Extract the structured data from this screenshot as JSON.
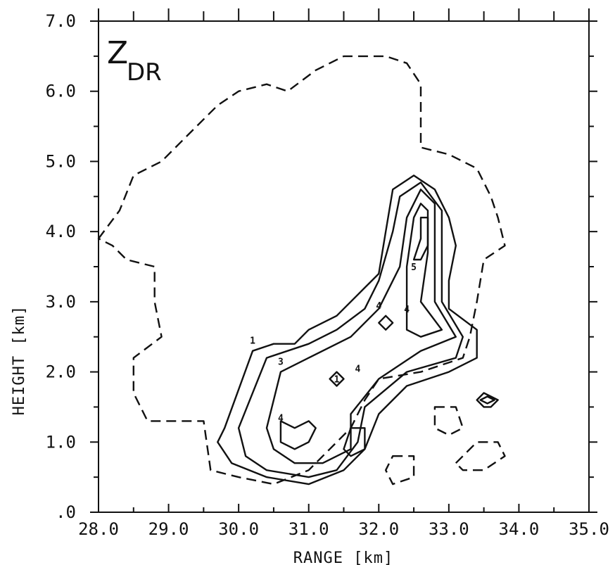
{
  "chart_data": {
    "type": "contour",
    "panel_label": {
      "main": "Z",
      "sub": "DR"
    },
    "xlabel": "RANGE [km]",
    "ylabel": "HEIGHT [km]",
    "xlim": [
      28.0,
      35.0
    ],
    "ylim": [
      0.0,
      7.0
    ],
    "x_tick_labels": [
      "28.0",
      "29.0",
      "30.0",
      "31.0",
      "32.0",
      "33.0",
      "34.0",
      "35.0"
    ],
    "y_tick_labels": [
      ".0",
      "1.0",
      "2.0",
      "3.0",
      "4.0",
      "5.0",
      "6.0",
      "7.0"
    ],
    "x_ticks": [
      28.0,
      29.0,
      30.0,
      31.0,
      32.0,
      33.0,
      34.0,
      35.0
    ],
    "y_ticks": [
      0.0,
      1.0,
      2.0,
      3.0,
      4.0,
      5.0,
      6.0,
      7.0
    ],
    "contours": [
      {
        "level": "0",
        "style": "dashed",
        "closed": true,
        "points": [
          [
            28.0,
            3.9
          ],
          [
            28.3,
            4.3
          ],
          [
            28.5,
            4.8
          ],
          [
            28.9,
            5.0
          ],
          [
            29.3,
            5.4
          ],
          [
            29.7,
            5.8
          ],
          [
            30.0,
            6.0
          ],
          [
            30.4,
            6.1
          ],
          [
            30.7,
            6.0
          ],
          [
            31.1,
            6.3
          ],
          [
            31.5,
            6.5
          ],
          [
            31.7,
            6.5
          ],
          [
            32.1,
            6.5
          ],
          [
            32.4,
            6.4
          ],
          [
            32.6,
            6.1
          ],
          [
            32.6,
            5.6
          ],
          [
            32.6,
            5.2
          ],
          [
            33.0,
            5.1
          ],
          [
            33.4,
            4.9
          ],
          [
            33.6,
            4.5
          ],
          [
            33.7,
            4.2
          ],
          [
            33.8,
            3.8
          ],
          [
            33.5,
            3.6
          ],
          [
            33.4,
            3.0
          ],
          [
            33.3,
            2.5
          ],
          [
            33.2,
            2.2
          ],
          [
            32.6,
            2.0
          ],
          [
            32.0,
            1.9
          ],
          [
            31.8,
            1.6
          ],
          [
            31.6,
            1.2
          ],
          [
            31.3,
            0.9
          ],
          [
            31.0,
            0.6
          ],
          [
            30.5,
            0.4
          ],
          [
            30.0,
            0.5
          ],
          [
            29.6,
            0.6
          ],
          [
            29.5,
            1.3
          ],
          [
            28.9,
            1.3
          ],
          [
            28.7,
            1.3
          ],
          [
            28.5,
            1.7
          ],
          [
            28.5,
            2.2
          ],
          [
            28.9,
            2.5
          ],
          [
            28.8,
            3.0
          ],
          [
            28.8,
            3.5
          ],
          [
            28.4,
            3.6
          ],
          [
            28.2,
            3.8
          ]
        ]
      },
      {
        "level": "0",
        "style": "dashed",
        "closed": true,
        "points": [
          [
            32.2,
            0.8
          ],
          [
            32.5,
            0.8
          ],
          [
            32.5,
            0.5
          ],
          [
            32.2,
            0.4
          ],
          [
            32.1,
            0.6
          ]
        ]
      },
      {
        "level": "0",
        "style": "dashed",
        "closed": true,
        "points": [
          [
            32.8,
            1.5
          ],
          [
            33.1,
            1.5
          ],
          [
            33.2,
            1.2
          ],
          [
            33.0,
            1.1
          ],
          [
            32.8,
            1.2
          ]
        ]
      },
      {
        "level": "0",
        "style": "dashed",
        "closed": true,
        "points": [
          [
            33.1,
            0.7
          ],
          [
            33.4,
            1.0
          ],
          [
            33.7,
            1.0
          ],
          [
            33.8,
            0.8
          ],
          [
            33.5,
            0.6
          ],
          [
            33.2,
            0.6
          ]
        ]
      },
      {
        "level": "1",
        "style": "solid",
        "closed": true,
        "points": [
          [
            29.8,
            1.2
          ],
          [
            30.2,
            2.3
          ],
          [
            30.5,
            2.4
          ],
          [
            30.8,
            2.4
          ],
          [
            31.0,
            2.6
          ],
          [
            31.4,
            2.8
          ],
          [
            31.8,
            3.2
          ],
          [
            32.0,
            3.4
          ],
          [
            32.1,
            4.0
          ],
          [
            32.2,
            4.6
          ],
          [
            32.5,
            4.8
          ],
          [
            32.8,
            4.6
          ],
          [
            33.0,
            4.2
          ],
          [
            33.1,
            3.8
          ],
          [
            33.0,
            3.3
          ],
          [
            33.0,
            2.9
          ],
          [
            33.4,
            2.6
          ],
          [
            33.4,
            2.2
          ],
          [
            33.0,
            2.0
          ],
          [
            32.4,
            1.8
          ],
          [
            32.0,
            1.4
          ],
          [
            31.8,
            0.9
          ],
          [
            31.5,
            0.6
          ],
          [
            31.0,
            0.4
          ],
          [
            30.4,
            0.5
          ],
          [
            29.9,
            0.7
          ],
          [
            29.7,
            1.0
          ]
        ]
      },
      {
        "level": "2",
        "style": "solid",
        "closed": true,
        "points": [
          [
            30.0,
            1.2
          ],
          [
            30.4,
            2.2
          ],
          [
            31.0,
            2.4
          ],
          [
            31.4,
            2.6
          ],
          [
            31.8,
            2.9
          ],
          [
            32.0,
            3.3
          ],
          [
            32.2,
            4.0
          ],
          [
            32.3,
            4.5
          ],
          [
            32.6,
            4.7
          ],
          [
            32.9,
            4.3
          ],
          [
            32.9,
            3.5
          ],
          [
            32.9,
            3.0
          ],
          [
            33.2,
            2.5
          ],
          [
            33.1,
            2.2
          ],
          [
            32.4,
            2.0
          ],
          [
            31.8,
            1.5
          ],
          [
            31.7,
            1.0
          ],
          [
            31.4,
            0.6
          ],
          [
            31.0,
            0.5
          ],
          [
            30.4,
            0.6
          ],
          [
            30.1,
            0.8
          ]
        ]
      },
      {
        "level": "3",
        "style": "solid",
        "closed": true,
        "points": [
          [
            30.4,
            1.2
          ],
          [
            30.6,
            2.0
          ],
          [
            31.0,
            2.2
          ],
          [
            31.6,
            2.5
          ],
          [
            32.0,
            2.9
          ],
          [
            32.3,
            3.5
          ],
          [
            32.4,
            4.2
          ],
          [
            32.6,
            4.6
          ],
          [
            32.8,
            4.4
          ],
          [
            32.8,
            3.6
          ],
          [
            32.8,
            3.0
          ],
          [
            33.1,
            2.5
          ],
          [
            32.6,
            2.3
          ],
          [
            32.0,
            1.9
          ],
          [
            31.6,
            1.4
          ],
          [
            31.6,
            0.9
          ],
          [
            31.2,
            0.7
          ],
          [
            30.8,
            0.7
          ],
          [
            30.5,
            0.9
          ]
        ]
      },
      {
        "level": "4",
        "style": "solid",
        "closed": true,
        "points": [
          [
            32.4,
            2.6
          ],
          [
            32.4,
            3.5
          ],
          [
            32.5,
            4.2
          ],
          [
            32.6,
            4.4
          ],
          [
            32.7,
            4.3
          ],
          [
            32.7,
            3.7
          ],
          [
            32.6,
            3.0
          ],
          [
            32.9,
            2.6
          ],
          [
            32.6,
            2.5
          ]
        ]
      },
      {
        "level": "5",
        "style": "solid",
        "closed": true,
        "points": [
          [
            32.5,
            3.6
          ],
          [
            32.6,
            3.9
          ],
          [
            32.6,
            4.2
          ],
          [
            32.7,
            4.2
          ],
          [
            32.7,
            3.8
          ],
          [
            32.6,
            3.6
          ]
        ]
      },
      {
        "level": "4",
        "style": "solid",
        "closed": true,
        "points": [
          [
            30.6,
            1.0
          ],
          [
            30.6,
            1.3
          ],
          [
            30.8,
            1.2
          ],
          [
            31.0,
            1.3
          ],
          [
            31.1,
            1.2
          ],
          [
            31.0,
            1.0
          ],
          [
            30.8,
            0.9
          ]
        ]
      },
      {
        "level": "4",
        "style": "solid",
        "closed": true,
        "points": [
          [
            31.5,
            0.9
          ],
          [
            31.6,
            1.2
          ],
          [
            31.8,
            1.2
          ],
          [
            31.8,
            0.9
          ],
          [
            31.6,
            0.8
          ]
        ]
      },
      {
        "level": "4",
        "style": "solid",
        "closed": true,
        "points": [
          [
            31.3,
            1.9
          ],
          [
            31.4,
            2.0
          ],
          [
            31.5,
            1.9
          ],
          [
            31.4,
            1.8
          ]
        ]
      },
      {
        "level": "4",
        "style": "solid",
        "closed": true,
        "points": [
          [
            32.0,
            2.7
          ],
          [
            32.1,
            2.8
          ],
          [
            32.2,
            2.7
          ],
          [
            32.1,
            2.6
          ]
        ]
      },
      {
        "level": "4",
        "style": "solid",
        "closed": true,
        "points": [
          [
            33.4,
            1.6
          ],
          [
            33.5,
            1.7
          ],
          [
            33.7,
            1.6
          ],
          [
            33.6,
            1.5
          ],
          [
            33.5,
            1.5
          ]
        ]
      },
      {
        "level": "5",
        "style": "solid",
        "closed": true,
        "points": [
          [
            33.45,
            1.6
          ],
          [
            33.55,
            1.65
          ],
          [
            33.65,
            1.6
          ],
          [
            33.55,
            1.55
          ]
        ]
      }
    ],
    "contour_labels": [
      {
        "text": "1",
        "x": 30.2,
        "y": 2.4
      },
      {
        "text": "3",
        "x": 30.6,
        "y": 2.1
      },
      {
        "text": "4",
        "x": 30.6,
        "y": 1.3
      },
      {
        "text": "1",
        "x": 31.4,
        "y": 1.85
      },
      {
        "text": "4",
        "x": 31.7,
        "y": 2.0
      },
      {
        "text": "4",
        "x": 32.0,
        "y": 2.9
      },
      {
        "text": "4",
        "x": 32.4,
        "y": 2.85
      },
      {
        "text": "5",
        "x": 32.5,
        "y": 3.45
      }
    ]
  }
}
